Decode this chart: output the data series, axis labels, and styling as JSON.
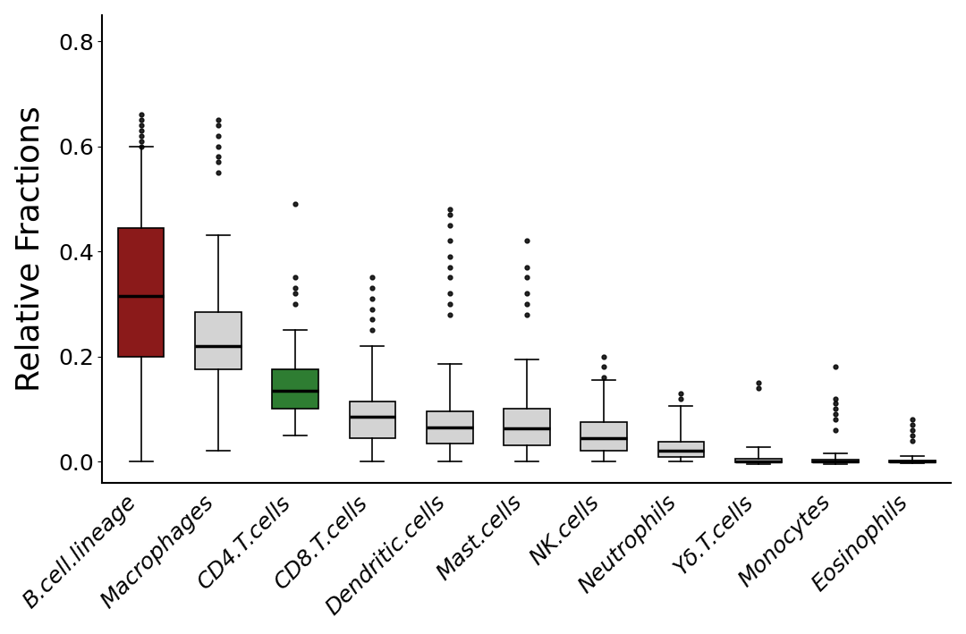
{
  "categories": [
    "B.cell.lineage",
    "Macrophages",
    "CD4.T.cells",
    "CD8.T.cells",
    "Dendritic.cells",
    "Mast.cells",
    "NK.cells",
    "Neutrophils",
    "Yδ.T.cells",
    "Monocytes",
    "Eosinophils"
  ],
  "box_colors": [
    "#8B1A1A",
    "#D3D3D3",
    "#2E7D32",
    "#D3D3D3",
    "#D3D3D3",
    "#D3D3D3",
    "#D3D3D3",
    "#D3D3D3",
    "#D3D3D3",
    "#D3D3D3",
    "#D3D3D3"
  ],
  "ylabel": "Relative Fractions",
  "ylim": [
    -0.04,
    0.85
  ],
  "yticks": [
    0.0,
    0.2,
    0.4,
    0.6,
    0.8
  ],
  "background_color": "#FFFFFF",
  "ylabel_fontsize": 26,
  "tick_fontsize": 18,
  "box_stats": [
    {
      "whislo": 0.0,
      "q1": 0.2,
      "med": 0.315,
      "q3": 0.445,
      "whishi": 0.6,
      "fliers_high": [
        0.65,
        0.66,
        0.64,
        0.63,
        0.62,
        0.61,
        0.6
      ]
    },
    {
      "whislo": 0.02,
      "q1": 0.175,
      "med": 0.22,
      "q3": 0.285,
      "whishi": 0.43,
      "fliers_high": [
        0.55,
        0.58,
        0.57,
        0.6,
        0.62,
        0.64,
        0.65
      ]
    },
    {
      "whislo": 0.05,
      "q1": 0.1,
      "med": 0.135,
      "q3": 0.175,
      "whishi": 0.25,
      "fliers_high": [
        0.3,
        0.32,
        0.33,
        0.35,
        0.49
      ]
    },
    {
      "whislo": 0.0,
      "q1": 0.045,
      "med": 0.085,
      "q3": 0.115,
      "whishi": 0.22,
      "fliers_high": [
        0.25,
        0.27,
        0.29,
        0.31,
        0.33,
        0.35
      ]
    },
    {
      "whislo": 0.0,
      "q1": 0.035,
      "med": 0.065,
      "q3": 0.095,
      "whishi": 0.185,
      "fliers_high": [
        0.28,
        0.3,
        0.32,
        0.35,
        0.37,
        0.39,
        0.42,
        0.45,
        0.47,
        0.48
      ]
    },
    {
      "whislo": 0.0,
      "q1": 0.03,
      "med": 0.063,
      "q3": 0.1,
      "whishi": 0.195,
      "fliers_high": [
        0.28,
        0.3,
        0.32,
        0.35,
        0.37,
        0.42
      ]
    },
    {
      "whislo": 0.0,
      "q1": 0.02,
      "med": 0.045,
      "q3": 0.075,
      "whishi": 0.155,
      "fliers_high": [
        0.16,
        0.18,
        0.2
      ]
    },
    {
      "whislo": 0.0,
      "q1": 0.008,
      "med": 0.02,
      "q3": 0.038,
      "whishi": 0.105,
      "fliers_high": [
        0.12,
        0.13
      ]
    },
    {
      "whislo": -0.005,
      "q1": -0.002,
      "med": 0.0,
      "q3": 0.005,
      "whishi": 0.028,
      "fliers_high": [
        0.14,
        0.15
      ]
    },
    {
      "whislo": -0.005,
      "q1": -0.002,
      "med": 0.0,
      "q3": 0.003,
      "whishi": 0.015,
      "fliers_high": [
        0.06,
        0.08,
        0.09,
        0.1,
        0.11,
        0.12,
        0.18
      ]
    },
    {
      "whislo": -0.003,
      "q1": -0.001,
      "med": 0.0,
      "q3": 0.002,
      "whishi": 0.01,
      "fliers_high": [
        0.04,
        0.05,
        0.06,
        0.07,
        0.08
      ]
    }
  ]
}
